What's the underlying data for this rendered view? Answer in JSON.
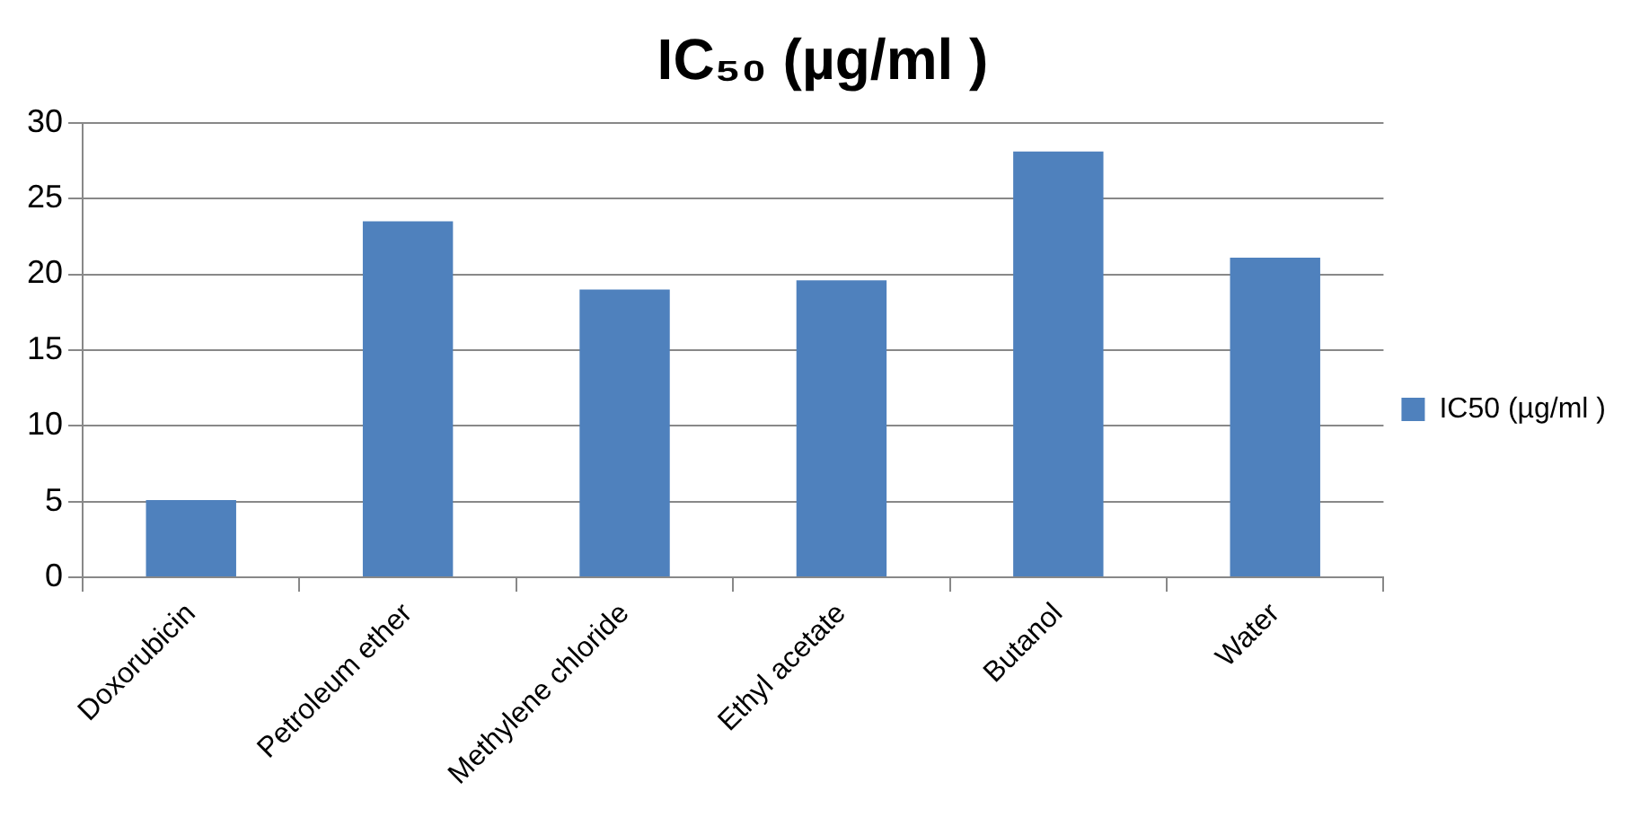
{
  "chart_data": {
    "type": "bar",
    "title": "IC₅₀ (µg/ml )",
    "categories": [
      "Doxorubicin",
      "Petroleum ether",
      "Methylene chloride",
      "Ethyl acetate",
      "Butanol",
      "Water"
    ],
    "series": [
      {
        "name": "IC50 (µg/ml )",
        "color": "#4f81bd",
        "values": [
          5.1,
          23.5,
          19.0,
          19.6,
          28.1,
          21.1
        ]
      }
    ],
    "ylim": [
      0,
      30
    ],
    "yticks": [
      0,
      5,
      10,
      15,
      20,
      25,
      30
    ],
    "grid": "y",
    "legend": "right"
  }
}
